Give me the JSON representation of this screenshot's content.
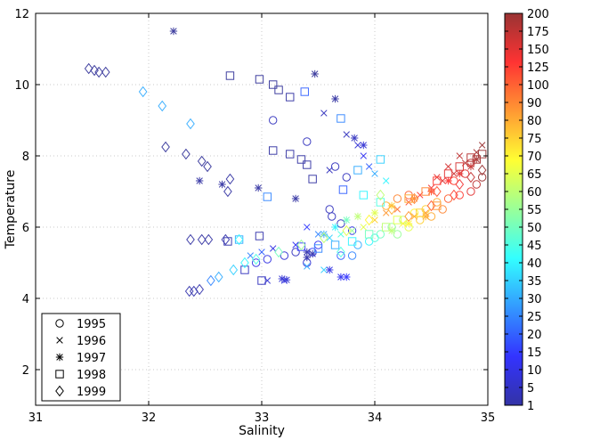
{
  "chart_data": {
    "type": "scatter",
    "xlabel": "Salinity",
    "ylabel": "Temperature",
    "xlim": [
      31,
      35
    ],
    "ylim": [
      1,
      12
    ],
    "xticks": [
      "31",
      "32",
      "33",
      "34",
      "35"
    ],
    "yticks": [
      "2",
      "4",
      "6",
      "8",
      "10",
      "12"
    ],
    "grid": "dotted",
    "legend_placement": "bottom-left",
    "colorbar": {
      "ticks": [
        "1",
        "5",
        "10",
        "15",
        "20",
        "25",
        "30",
        "35",
        "40",
        "45",
        "50",
        "55",
        "60",
        "65",
        "70",
        "75",
        "80",
        "90",
        "100",
        "125",
        "150",
        "175",
        "200"
      ]
    },
    "series": [
      {
        "name": "1995",
        "marker": "circle",
        "points": [
          [
            33.1,
            9.0,
            5
          ],
          [
            33.4,
            8.4,
            5
          ],
          [
            33.65,
            7.7,
            5
          ],
          [
            33.75,
            7.4,
            5
          ],
          [
            33.6,
            6.5,
            5
          ],
          [
            33.62,
            6.3,
            5
          ],
          [
            33.7,
            6.1,
            5
          ],
          [
            33.8,
            5.9,
            10
          ],
          [
            33.5,
            5.5,
            12
          ],
          [
            33.45,
            5.3,
            15
          ],
          [
            33.7,
            5.2,
            20
          ],
          [
            33.8,
            5.2,
            25
          ],
          [
            33.3,
            5.3,
            5
          ],
          [
            33.2,
            5.2,
            8
          ],
          [
            33.05,
            5.1,
            10
          ],
          [
            32.95,
            5.0,
            10
          ],
          [
            33.4,
            5.0,
            8
          ],
          [
            33.85,
            5.5,
            30
          ],
          [
            33.95,
            5.6,
            40
          ],
          [
            34.05,
            5.8,
            50
          ],
          [
            34.15,
            6.0,
            55
          ],
          [
            34.25,
            6.2,
            60
          ],
          [
            34.35,
            6.4,
            70
          ],
          [
            34.45,
            6.5,
            75
          ],
          [
            34.55,
            6.7,
            80
          ],
          [
            34.65,
            6.8,
            100
          ],
          [
            34.75,
            6.9,
            125
          ],
          [
            34.85,
            7.0,
            150
          ],
          [
            34.9,
            7.2,
            175
          ],
          [
            34.95,
            7.4,
            200
          ],
          [
            34.3,
            6.0,
            65
          ],
          [
            34.4,
            6.2,
            75
          ],
          [
            34.5,
            6.3,
            80
          ],
          [
            34.6,
            6.5,
            90
          ],
          [
            34.2,
            5.8,
            55
          ],
          [
            34.0,
            5.7,
            45
          ],
          [
            34.7,
            7.3,
            120
          ],
          [
            34.8,
            7.5,
            150
          ],
          [
            34.85,
            7.8,
            175
          ],
          [
            34.3,
            6.9,
            100
          ],
          [
            34.2,
            6.8,
            90
          ],
          [
            34.1,
            6.6,
            80
          ]
        ]
      },
      {
        "name": "1996",
        "marker": "x",
        "points": [
          [
            33.55,
            9.2,
            5
          ],
          [
            33.75,
            8.6,
            5
          ],
          [
            33.85,
            8.3,
            8
          ],
          [
            33.9,
            8.0,
            12
          ],
          [
            33.6,
            7.6,
            5
          ],
          [
            33.95,
            7.7,
            20
          ],
          [
            34.0,
            7.5,
            30
          ],
          [
            34.1,
            7.3,
            40
          ],
          [
            33.4,
            6.0,
            15
          ],
          [
            33.5,
            5.8,
            25
          ],
          [
            33.6,
            5.7,
            35
          ],
          [
            33.7,
            5.8,
            45
          ],
          [
            33.8,
            5.9,
            55
          ],
          [
            33.9,
            6.0,
            65
          ],
          [
            34.0,
            6.2,
            75
          ],
          [
            34.1,
            6.4,
            85
          ],
          [
            34.2,
            6.5,
            95
          ],
          [
            34.3,
            6.7,
            110
          ],
          [
            34.4,
            6.9,
            125
          ],
          [
            34.5,
            7.1,
            140
          ],
          [
            34.6,
            7.3,
            155
          ],
          [
            34.7,
            7.5,
            165
          ],
          [
            34.8,
            7.8,
            180
          ],
          [
            34.9,
            8.1,
            190
          ],
          [
            34.95,
            8.3,
            200
          ],
          [
            34.75,
            8.0,
            175
          ],
          [
            34.65,
            7.7,
            160
          ],
          [
            34.55,
            7.4,
            150
          ],
          [
            33.2,
            4.5,
            10
          ],
          [
            33.05,
            4.5,
            8
          ],
          [
            33.3,
            5.5,
            12
          ],
          [
            33.1,
            5.4,
            10
          ],
          [
            33.0,
            5.3,
            20
          ],
          [
            32.9,
            5.2,
            25
          ],
          [
            33.4,
            4.9,
            30
          ],
          [
            33.55,
            4.8,
            35
          ],
          [
            34.25,
            6.1,
            70
          ],
          [
            34.35,
            6.3,
            80
          ],
          [
            34.45,
            6.4,
            85
          ]
        ]
      },
      {
        "name": "1997",
        "marker": "asterisk",
        "points": [
          [
            32.22,
            11.5,
            1
          ],
          [
            33.47,
            10.3,
            1
          ],
          [
            33.65,
            9.6,
            2
          ],
          [
            32.45,
            7.3,
            2
          ],
          [
            32.65,
            7.2,
            2
          ],
          [
            32.97,
            7.1,
            2
          ],
          [
            33.3,
            6.8,
            2
          ],
          [
            33.82,
            8.5,
            5
          ],
          [
            33.9,
            8.3,
            8
          ],
          [
            33.4,
            5.3,
            3
          ],
          [
            33.45,
            5.25,
            3
          ],
          [
            33.4,
            5.15,
            3
          ],
          [
            33.6,
            4.8,
            10
          ],
          [
            33.7,
            4.6,
            12
          ],
          [
            33.75,
            4.6,
            14
          ],
          [
            33.18,
            4.55,
            8
          ],
          [
            33.22,
            4.52,
            8
          ],
          [
            33.55,
            5.8,
            30
          ],
          [
            33.65,
            6.0,
            40
          ],
          [
            33.75,
            6.2,
            50
          ],
          [
            33.85,
            6.3,
            60
          ],
          [
            34.0,
            6.4,
            65
          ],
          [
            34.15,
            6.6,
            75
          ],
          [
            34.35,
            6.8,
            90
          ],
          [
            34.5,
            7.0,
            110
          ],
          [
            34.65,
            7.3,
            130
          ],
          [
            34.75,
            7.5,
            150
          ],
          [
            34.85,
            7.7,
            170
          ],
          [
            34.9,
            7.9,
            190
          ],
          [
            34.45,
            6.3,
            80
          ],
          [
            34.3,
            6.1,
            70
          ],
          [
            34.15,
            5.9,
            60
          ]
        ]
      },
      {
        "name": "1998",
        "marker": "square",
        "points": [
          [
            32.72,
            10.25,
            1
          ],
          [
            32.98,
            10.15,
            1
          ],
          [
            33.1,
            10.0,
            1
          ],
          [
            33.15,
            9.85,
            1
          ],
          [
            33.25,
            9.65,
            2
          ],
          [
            33.38,
            9.8,
            20
          ],
          [
            33.7,
            9.05,
            25
          ],
          [
            33.25,
            8.05,
            2
          ],
          [
            33.35,
            7.9,
            2
          ],
          [
            33.4,
            7.75,
            2
          ],
          [
            33.45,
            7.35,
            2
          ],
          [
            33.72,
            7.05,
            20
          ],
          [
            33.1,
            8.15,
            2
          ],
          [
            33.05,
            6.85,
            25
          ],
          [
            32.8,
            5.65,
            30
          ],
          [
            32.98,
            5.75,
            3
          ],
          [
            32.7,
            5.6,
            3
          ],
          [
            33.0,
            4.5,
            5
          ],
          [
            32.85,
            4.8,
            5
          ],
          [
            33.85,
            7.6,
            30
          ],
          [
            34.05,
            7.9,
            35
          ],
          [
            33.9,
            6.9,
            40
          ],
          [
            34.05,
            6.7,
            45
          ],
          [
            34.3,
            6.8,
            80
          ],
          [
            34.45,
            7.0,
            90
          ],
          [
            34.55,
            7.3,
            125
          ],
          [
            34.65,
            7.5,
            150
          ],
          [
            34.75,
            7.7,
            160
          ],
          [
            34.85,
            7.95,
            180
          ],
          [
            34.95,
            8.05,
            200
          ],
          [
            34.9,
            7.9,
            190
          ],
          [
            34.55,
            6.6,
            85
          ],
          [
            34.4,
            6.4,
            75
          ],
          [
            34.2,
            6.2,
            65
          ],
          [
            34.1,
            6.0,
            60
          ],
          [
            33.95,
            5.8,
            50
          ],
          [
            33.8,
            5.6,
            40
          ],
          [
            33.65,
            5.5,
            30
          ],
          [
            33.5,
            5.4,
            25
          ],
          [
            33.35,
            5.45,
            15
          ]
        ]
      },
      {
        "name": "1999",
        "marker": "diamond",
        "points": [
          [
            31.47,
            10.45,
            1
          ],
          [
            31.52,
            10.4,
            1
          ],
          [
            31.56,
            10.35,
            1
          ],
          [
            31.62,
            10.35,
            1
          ],
          [
            31.95,
            9.8,
            30
          ],
          [
            32.12,
            9.4,
            30
          ],
          [
            32.37,
            8.9,
            30
          ],
          [
            32.15,
            8.25,
            1
          ],
          [
            32.33,
            8.05,
            1
          ],
          [
            32.47,
            7.85,
            1
          ],
          [
            32.52,
            7.7,
            1
          ],
          [
            32.72,
            7.35,
            2
          ],
          [
            32.7,
            7.0,
            2
          ],
          [
            32.37,
            5.65,
            2
          ],
          [
            32.47,
            5.65,
            2
          ],
          [
            32.53,
            5.65,
            2
          ],
          [
            32.68,
            5.65,
            3
          ],
          [
            32.8,
            5.65,
            40
          ],
          [
            32.4,
            4.2,
            3
          ],
          [
            32.45,
            4.25,
            3
          ],
          [
            32.36,
            4.2,
            3
          ],
          [
            32.55,
            4.5,
            25
          ],
          [
            32.62,
            4.6,
            30
          ],
          [
            32.75,
            4.8,
            35
          ],
          [
            32.85,
            5.0,
            40
          ],
          [
            32.95,
            5.1,
            45
          ],
          [
            33.15,
            5.3,
            50
          ],
          [
            33.35,
            5.5,
            55
          ],
          [
            33.55,
            5.7,
            60
          ],
          [
            33.75,
            5.9,
            65
          ],
          [
            33.95,
            6.2,
            70
          ],
          [
            34.15,
            6.5,
            80
          ],
          [
            34.35,
            6.8,
            90
          ],
          [
            34.55,
            7.0,
            110
          ],
          [
            34.75,
            7.2,
            140
          ],
          [
            34.85,
            7.4,
            170
          ],
          [
            34.95,
            7.6,
            200
          ],
          [
            34.7,
            6.9,
            120
          ],
          [
            34.5,
            6.6,
            100
          ],
          [
            34.3,
            6.3,
            85
          ],
          [
            34.05,
            6.9,
            60
          ],
          [
            33.7,
            5.3,
            45
          ]
        ]
      }
    ]
  }
}
